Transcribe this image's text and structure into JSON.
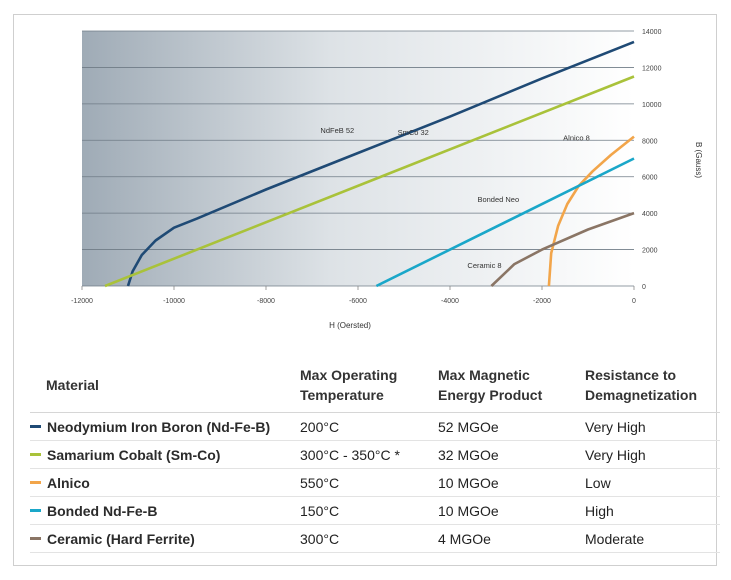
{
  "chart_data": {
    "type": "line",
    "xlabel": "H (Oersted)",
    "ylabel": "B (Gauss)",
    "xlim": [
      -12000,
      0
    ],
    "ylim": [
      0,
      14000
    ],
    "x_ticks": [
      -12000,
      -10000,
      -8000,
      -6000,
      -4000,
      -2000,
      0
    ],
    "y_ticks": [
      0,
      2000,
      4000,
      6000,
      8000,
      10000,
      12000,
      14000
    ],
    "grid": "horizontal",
    "series": [
      {
        "name": "NdFeB 52",
        "color": "#1f4a75",
        "points": [
          [
            -11000,
            0
          ],
          [
            -10900,
            800
          ],
          [
            -10700,
            1700
          ],
          [
            -10400,
            2500
          ],
          [
            -10000,
            3200
          ],
          [
            -9500,
            3700
          ],
          [
            -8000,
            5300
          ],
          [
            -6000,
            7300
          ],
          [
            -4000,
            9300
          ],
          [
            -2000,
            11400
          ],
          [
            0,
            13400
          ]
        ]
      },
      {
        "name": "SmCo 32",
        "color": "#a9c23a",
        "points": [
          [
            -11500,
            0
          ],
          [
            0,
            11500
          ]
        ]
      },
      {
        "name": "Alnico 8",
        "color": "#f2a54a",
        "points": [
          [
            -1850,
            0
          ],
          [
            -1800,
            1800
          ],
          [
            -1650,
            3300
          ],
          [
            -1450,
            4500
          ],
          [
            -1200,
            5500
          ],
          [
            -900,
            6300
          ],
          [
            -500,
            7200
          ],
          [
            0,
            8200
          ]
        ]
      },
      {
        "name": "Bonded Neo",
        "color": "#1aa7c9",
        "points": [
          [
            -5600,
            0
          ],
          [
            0,
            7000
          ]
        ]
      },
      {
        "name": "Ceramic 8",
        "color": "#8a7565",
        "points": [
          [
            -3100,
            0
          ],
          [
            -2600,
            1200
          ],
          [
            -2000,
            2000
          ],
          [
            -1000,
            3100
          ],
          [
            0,
            4000
          ]
        ]
      }
    ]
  },
  "table": {
    "headers": {
      "material": "Material",
      "temp_1": "Max Operating",
      "temp_2": "Temperature",
      "energy_1": "Max Magnetic",
      "energy_2": "Energy Product",
      "resist_1": "Resistance to",
      "resist_2": "Demagnetization"
    },
    "rows": [
      {
        "color": "#1f4a75",
        "material": "Neodymium Iron Boron (Nd-Fe-B)",
        "temp": "200°C",
        "energy": "52 MGOe",
        "resistance": "Very High"
      },
      {
        "color": "#a9c23a",
        "material": "Samarium Cobalt (Sm-Co)",
        "temp": "300°C - 350°C *",
        "energy": "32 MGOe",
        "resistance": "Very High"
      },
      {
        "color": "#f2a54a",
        "material": "Alnico",
        "temp": "550°C",
        "energy": "10 MGOe",
        "resistance": "Low"
      },
      {
        "color": "#1aa7c9",
        "material": "Bonded Nd-Fe-B",
        "temp": "150°C",
        "energy": "10 MGOe",
        "resistance": "High"
      },
      {
        "color": "#8a7565",
        "material": "Ceramic (Hard Ferrite)",
        "temp": "300°C",
        "energy": "4 MGOe",
        "resistance": "Moderate"
      }
    ]
  }
}
